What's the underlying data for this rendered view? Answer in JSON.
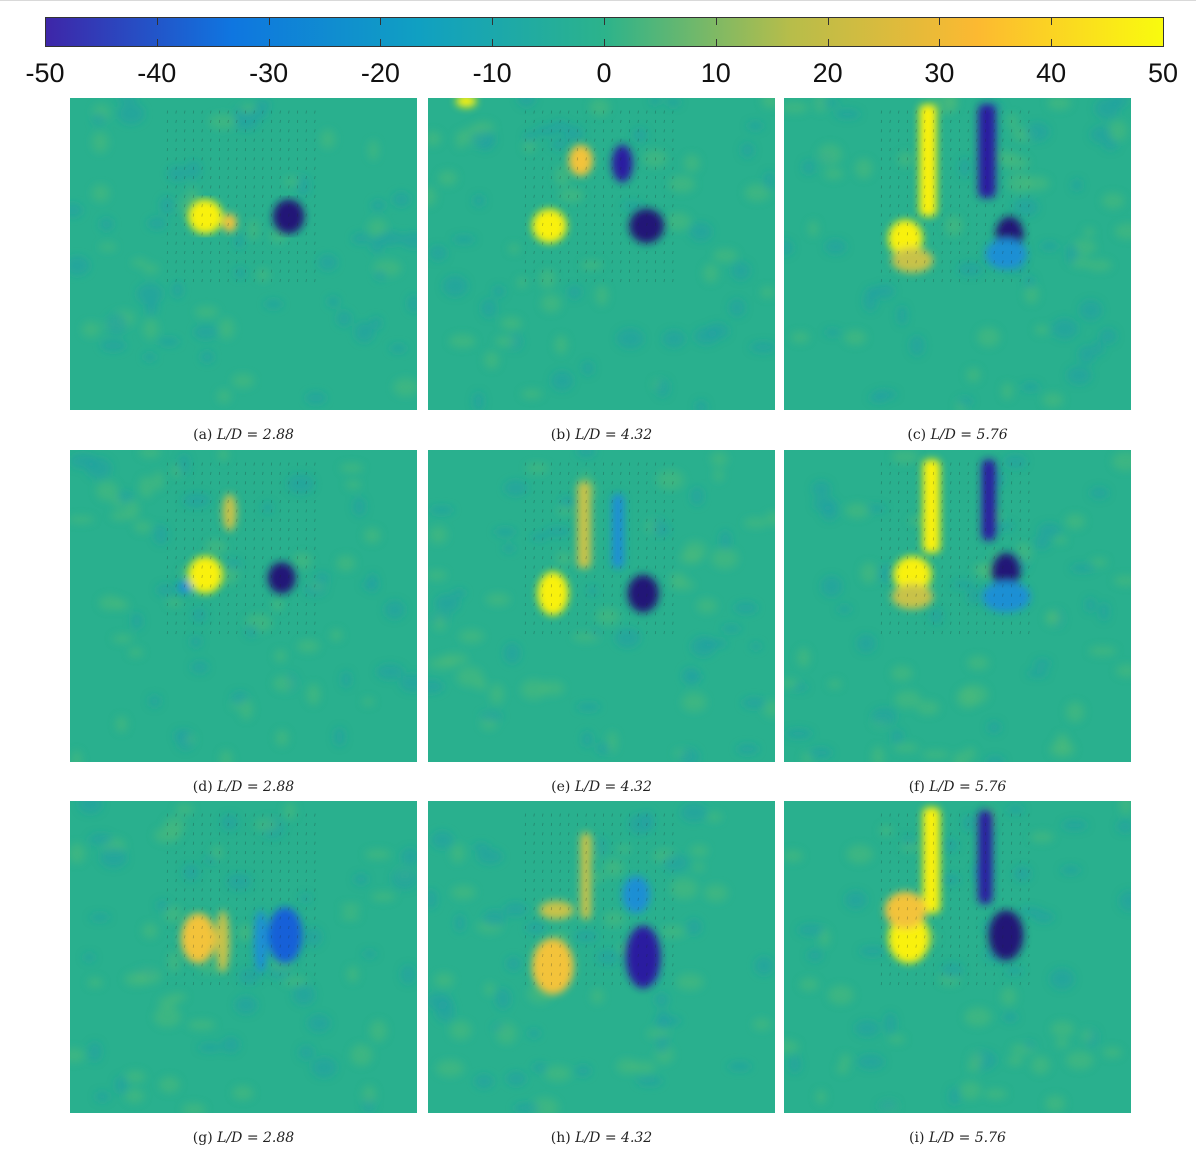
{
  "colorbar": {
    "ticks": [
      "-50",
      "-40",
      "-30",
      "-20",
      "-10",
      "0",
      "10",
      "20",
      "30",
      "40",
      "50"
    ],
    "colormap": "parula",
    "colors": [
      "#3e26a8",
      "#0f76e0",
      "#10a0c2",
      "#2cb38b",
      "#b7bd4a",
      "#fcb931",
      "#f9fb0e"
    ]
  },
  "panels": [
    {
      "label": "(a)",
      "expr": "L/D = 2.88"
    },
    {
      "label": "(b)",
      "expr": "L/D = 4.32"
    },
    {
      "label": "(c)",
      "expr": "L/D = 5.76"
    },
    {
      "label": "(d)",
      "expr": "L/D = 2.88"
    },
    {
      "label": "(e)",
      "expr": "L/D = 4.32"
    },
    {
      "label": "(f)",
      "expr": "L/D = 5.76"
    },
    {
      "label": "(g)",
      "expr": "L/D = 2.88"
    },
    {
      "label": "(h)",
      "expr": "L/D = 4.32"
    },
    {
      "label": "(i)",
      "expr": "L/D = 5.76"
    }
  ]
}
